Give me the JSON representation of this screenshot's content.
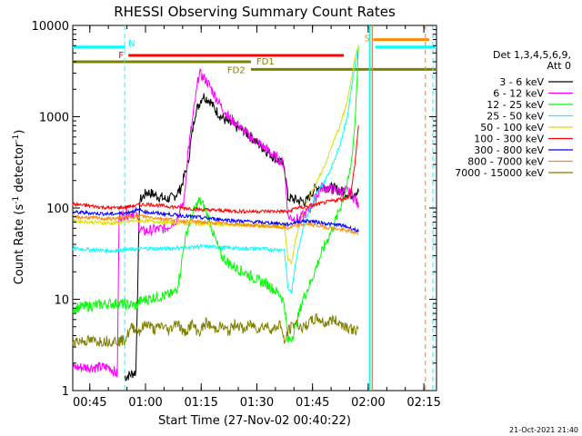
{
  "chart_data": {
    "type": "line",
    "title": "RHESSI Observing Summary Count Rates",
    "xlabel": "Start Time (27-Nov-02 00:40:22)",
    "ylabel": "Count Rate (s",
    "ylabel_sup1": "-1",
    "ylabel_mid": " detector",
    "ylabel_sup2": "-1",
    "ylabel_end": ")",
    "footer": "21-Oct-2021 21:40",
    "x_unit": "minutes after 00:40:22",
    "xlim": [
      0,
      98
    ],
    "ylim": [
      1,
      10000
    ],
    "yscale": "log",
    "x_ticks": [
      {
        "v": 4.6,
        "label": "00:45"
      },
      {
        "v": 19.6,
        "label": "01:00"
      },
      {
        "v": 34.6,
        "label": "01:15"
      },
      {
        "v": 49.6,
        "label": "01:30"
      },
      {
        "v": 64.6,
        "label": "01:45"
      },
      {
        "v": 79.6,
        "label": "02:00"
      },
      {
        "v": 94.6,
        "label": "02:15"
      }
    ],
    "y_ticks": [
      {
        "v": 1,
        "label": "1"
      },
      {
        "v": 10,
        "label": "10"
      },
      {
        "v": 100,
        "label": "100"
      },
      {
        "v": 1000,
        "label": "1000"
      },
      {
        "v": 10000,
        "label": "10000"
      }
    ],
    "legend_header": [
      "Det 1,3,4,5,6,9,",
      "Att 0"
    ],
    "legend_position": "right",
    "series": [
      {
        "name": "3 - 6 keV",
        "color": "#000000",
        "x": [
          14,
          17,
          18,
          20,
          22,
          25,
          27,
          29,
          31,
          32,
          33,
          35,
          37,
          38,
          40,
          42,
          44,
          46,
          48,
          50,
          52,
          57,
          58,
          61,
          63,
          65,
          67,
          70,
          75,
          76,
          77
        ],
        "y": [
          1.4,
          1.6,
          120,
          150,
          140,
          125,
          130,
          160,
          300,
          600,
          1100,
          1700,
          1500,
          1250,
          1000,
          850,
          780,
          700,
          600,
          500,
          430,
          290,
          130,
          120,
          118,
          160,
          175,
          165,
          140,
          150,
          150
        ]
      },
      {
        "name": "6 - 12 keV",
        "color": "#ff00ff",
        "x": [
          0,
          3,
          10,
          12,
          12.5,
          14,
          16,
          17,
          18,
          19,
          22,
          25,
          28,
          30,
          31,
          33,
          34,
          36,
          38,
          40,
          42,
          44,
          46,
          48,
          50,
          52,
          54,
          56,
          57,
          58,
          61,
          64,
          67,
          70,
          72,
          74,
          75,
          76,
          77
        ],
        "y": [
          1.8,
          1.8,
          1.8,
          1.5,
          80,
          85,
          88,
          90,
          60,
          55,
          58,
          60,
          75,
          120,
          400,
          1500,
          3000,
          2500,
          1800,
          1300,
          1000,
          850,
          700,
          600,
          520,
          450,
          380,
          330,
          300,
          80,
          75,
          100,
          170,
          160,
          150,
          155,
          140,
          130,
          100
        ]
      },
      {
        "name": "12 - 25 keV",
        "color": "#00ff00",
        "x": [
          0,
          5,
          10,
          12,
          14,
          16,
          17,
          18,
          20,
          22,
          25,
          27,
          28,
          29,
          30,
          31,
          32,
          33,
          34,
          35,
          36,
          37,
          38,
          40,
          42,
          44,
          46,
          48,
          50,
          52,
          54,
          56,
          57,
          58,
          59,
          60,
          62,
          64,
          66,
          68,
          70,
          72,
          74,
          75,
          75.5,
          76,
          77
        ],
        "y": [
          8,
          8.5,
          9,
          9,
          8.8,
          8.7,
          8.5,
          9.5,
          10,
          10.5,
          11,
          11.5,
          13,
          20,
          40,
          60,
          80,
          100,
          120,
          110,
          90,
          70,
          50,
          30,
          25,
          22,
          20,
          18,
          16,
          15,
          13,
          11,
          9,
          3.5,
          3.8,
          5,
          10,
          15,
          25,
          40,
          60,
          100,
          180,
          300,
          500,
          800,
          6000
        ]
      },
      {
        "name": "25 - 50 keV",
        "color": "#00ffff",
        "x": [
          0,
          5,
          10,
          15,
          20,
          25,
          30,
          35,
          40,
          45,
          50,
          55,
          57,
          58,
          59,
          60,
          62,
          64,
          66,
          68,
          70,
          72,
          74,
          75,
          76,
          77
        ],
        "y": [
          36,
          35,
          34,
          35,
          36,
          36,
          37,
          38,
          37,
          36,
          36,
          35,
          35,
          13,
          12,
          25,
          60,
          100,
          150,
          200,
          300,
          500,
          1000,
          2000,
          3500,
          6000
        ]
      },
      {
        "name": "50 - 100 keV",
        "color": "#dddd00",
        "x": [
          0,
          5,
          10,
          14,
          16,
          18,
          20,
          25,
          30,
          35,
          40,
          45,
          50,
          55,
          57,
          58,
          59,
          60,
          62,
          64,
          66,
          68,
          70,
          72,
          74,
          75,
          76,
          77
        ],
        "y": [
          72,
          70,
          68,
          70,
          72,
          73,
          72,
          70,
          68,
          67,
          66,
          65,
          64,
          64,
          64,
          27,
          25,
          45,
          90,
          140,
          200,
          300,
          500,
          800,
          1500,
          2500,
          4500,
          6000
        ]
      },
      {
        "name": "100 - 300 keV",
        "color": "#ff0000",
        "x": [
          0,
          5,
          10,
          14,
          16,
          18,
          20,
          25,
          30,
          35,
          40,
          45,
          50,
          55,
          57,
          58,
          59,
          60,
          62,
          64,
          66,
          68,
          70,
          72,
          74,
          75,
          76,
          77
        ],
        "y": [
          110,
          105,
          100,
          102,
          105,
          108,
          110,
          105,
          100,
          96,
          94,
          92,
          92,
          92,
          92,
          90,
          95,
          100,
          102,
          105,
          110,
          115,
          120,
          125,
          130,
          150,
          300,
          800
        ]
      },
      {
        "name": "300 - 800 keV",
        "color": "#0000ff",
        "x": [
          0,
          5,
          10,
          14,
          16,
          18,
          20,
          25,
          30,
          35,
          40,
          45,
          50,
          55,
          58,
          60,
          62,
          64,
          66,
          68,
          70,
          72,
          74,
          76,
          77
        ],
        "y": [
          90,
          88,
          86,
          88,
          92,
          95,
          90,
          86,
          82,
          78,
          75,
          72,
          70,
          68,
          66,
          70,
          72,
          72,
          70,
          68,
          66,
          65,
          62,
          58,
          55
        ]
      },
      {
        "name": "800 - 7000 keV",
        "color": "#ff8800",
        "x": [
          0,
          5,
          10,
          14,
          16,
          18,
          20,
          25,
          30,
          35,
          40,
          45,
          50,
          55,
          58,
          60,
          62,
          64,
          66,
          68,
          70,
          72,
          74,
          76,
          77
        ],
        "y": [
          80,
          78,
          76,
          78,
          80,
          82,
          80,
          76,
          72,
          70,
          68,
          66,
          64,
          62,
          60,
          64,
          66,
          66,
          64,
          62,
          60,
          58,
          56,
          54,
          52
        ]
      },
      {
        "name": "7000 - 15000 keV",
        "color": "#808000",
        "x": [
          0,
          5,
          10,
          13,
          14,
          16,
          18,
          20,
          22,
          24,
          26,
          28,
          30,
          32,
          34,
          36,
          38,
          40,
          42,
          44,
          46,
          48,
          50,
          52,
          54,
          56,
          57,
          58,
          59,
          60,
          62,
          64,
          66,
          68,
          70,
          72,
          74,
          76,
          77
        ],
        "y": [
          3.5,
          3.5,
          3.5,
          3.5,
          3.6,
          5,
          4.5,
          5.5,
          4.6,
          5.2,
          4.5,
          5.8,
          4.2,
          5.4,
          4.3,
          5.6,
          4.7,
          5.1,
          4.4,
          5.5,
          4.6,
          5.3,
          4.8,
          5.2,
          4.6,
          5.5,
          3.2,
          4.5,
          5,
          5.6,
          4.8,
          5.7,
          6.2,
          5.4,
          6,
          5.5,
          5,
          4.5,
          4.8
        ]
      }
    ],
    "annotations": {
      "attenuator_label": "N",
      "flare_label": "F",
      "saa_label": "S",
      "fd1_label": "FD1",
      "fd2_label": "FD2",
      "n_bar": {
        "x0": 0,
        "x1": 14,
        "y": 5800,
        "color": "#00ffff"
      },
      "n_bar2": {
        "x0": 81.5,
        "x1": 98,
        "y": 5800,
        "color": "#00ffff"
      },
      "f_bar": {
        "x0": 15,
        "x1": 73,
        "y": 4700,
        "color": "#ff0000"
      },
      "s_bar": {
        "x0": 81,
        "x1": 96,
        "y": 7000,
        "color": "#ff8800"
      },
      "fd1_bar": {
        "x0": 0,
        "x1": 48,
        "y": 4000,
        "color": "#808000"
      },
      "fd2_bar": {
        "x0": 48,
        "x1": 98,
        "y": 3300,
        "color": "#808000"
      },
      "dashed_lines": [
        {
          "x": 14,
          "color": "#00ffff"
        },
        {
          "x": 95,
          "color": "#ff8800"
        },
        {
          "x": 97,
          "color": "#00ffff"
        }
      ],
      "solid_lines": [
        {
          "x": 80,
          "color": "#00ffff"
        },
        {
          "x": 80.7,
          "color": "#ff8800"
        }
      ]
    }
  }
}
